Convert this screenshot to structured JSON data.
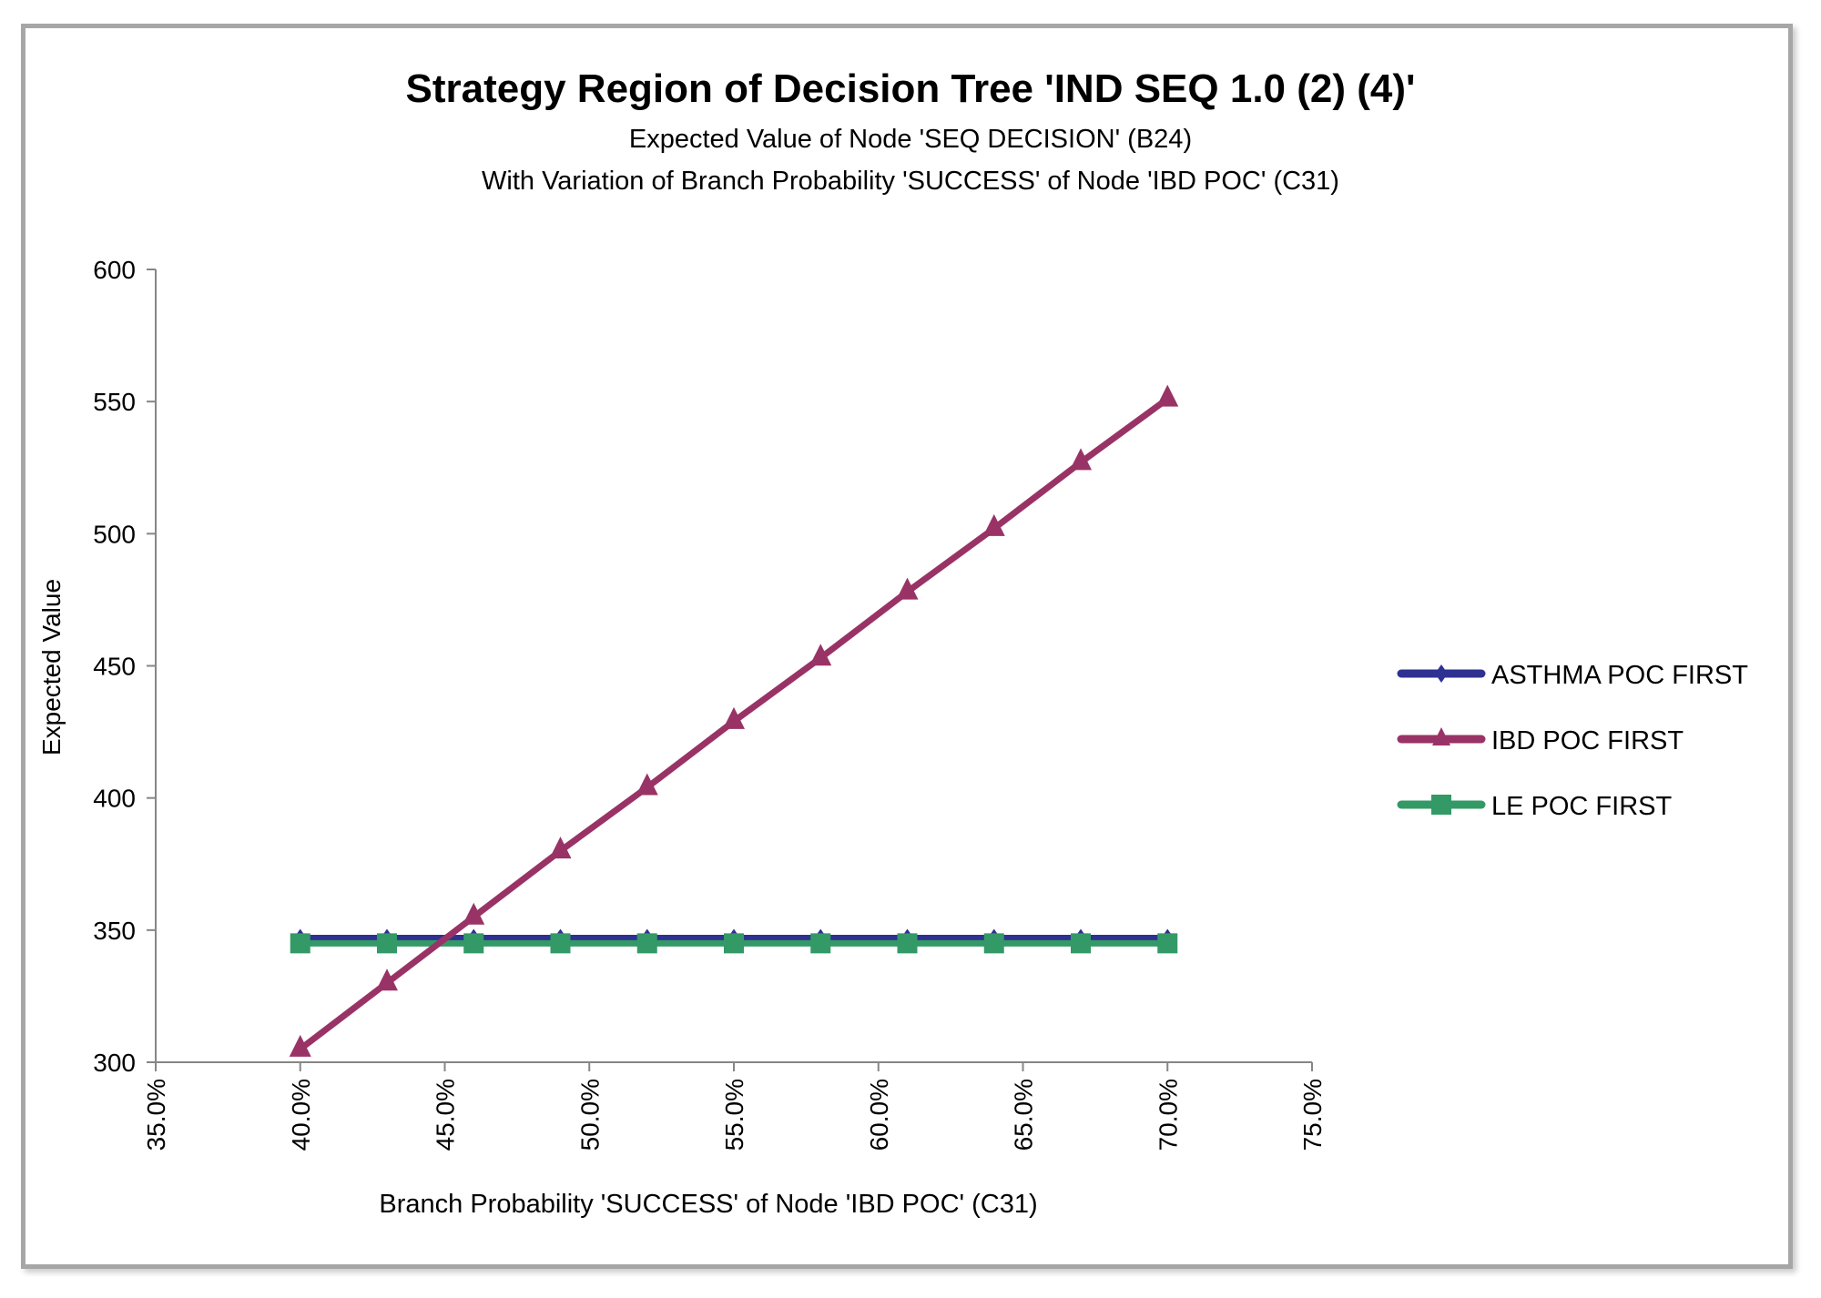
{
  "chart_data": {
    "type": "line",
    "title": "Strategy Region of Decision Tree 'IND SEQ 1.0 (2) (4)'",
    "subtitle": [
      "Expected Value of Node 'SEQ DECISION' (B24)",
      "With Variation of Branch Probability 'SUCCESS' of Node 'IBD POC' (C31)"
    ],
    "xlabel": "Branch Probability 'SUCCESS' of Node 'IBD POC' (C31)",
    "ylabel": "Expected Value",
    "xlim": [
      0.35,
      0.75
    ],
    "ylim": [
      300,
      600
    ],
    "x_ticks": [
      "35.0%",
      "40.0%",
      "45.0%",
      "50.0%",
      "55.0%",
      "60.0%",
      "65.0%",
      "70.0%",
      "75.0%"
    ],
    "y_ticks": [
      "300",
      "350",
      "400",
      "450",
      "500",
      "550",
      "600"
    ],
    "grid": false,
    "legend_placement": "right",
    "x": [
      0.4,
      0.43,
      0.46,
      0.49,
      0.52,
      0.55,
      0.58,
      0.61,
      0.64,
      0.67,
      0.7
    ],
    "series": [
      {
        "name": "ASTHMA POC FIRST",
        "color": "#2e3192",
        "marker": "diamond",
        "values": [
          347,
          347,
          347,
          347,
          347,
          347,
          347,
          347,
          347,
          347,
          347
        ]
      },
      {
        "name": "IBD POC FIRST",
        "color": "#993366",
        "marker": "triangle",
        "values": [
          305,
          330,
          355,
          380,
          404,
          429,
          453,
          478,
          502,
          527,
          551
        ]
      },
      {
        "name": "LE POC FIRST",
        "color": "#339966",
        "marker": "square",
        "values": [
          345,
          345,
          345,
          345,
          345,
          345,
          345,
          345,
          345,
          345,
          345
        ]
      }
    ]
  }
}
